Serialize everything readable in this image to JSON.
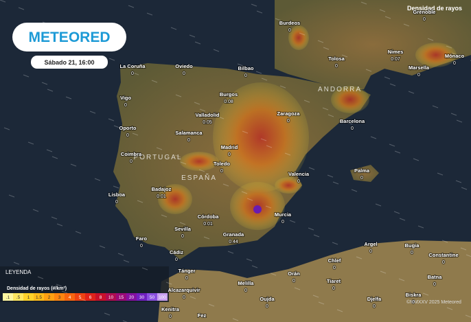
{
  "header": {
    "layer_title": "Densidad de rayos",
    "logo": "METEORED",
    "time": "Sábado 21, 16:00"
  },
  "legend": {
    "title": "LEYENDA",
    "subtitle": "Densidad de rayos (#/km²)",
    "labels": [
      ".1",
      ".5",
      "1",
      "1.5",
      "2",
      "3",
      "4",
      "5",
      "6",
      "8",
      "10",
      "15",
      "20",
      "30",
      "50",
      "100"
    ]
  },
  "countries": [
    "PORTUGAL",
    "ESPAÑA",
    "ANDORRA"
  ],
  "cities": [
    {
      "name": "Burdeos",
      "value": 0
    },
    {
      "name": "Grenoble",
      "value": 0
    },
    {
      "name": "Nimes",
      "value": 0.07
    },
    {
      "name": "Marsella",
      "value": 0
    },
    {
      "name": "Mónaco",
      "value": 0
    },
    {
      "name": "Tolosa",
      "value": 0
    },
    {
      "name": "La Coruña",
      "value": 0
    },
    {
      "name": "Oviedo",
      "value": 0
    },
    {
      "name": "Bilbao",
      "value": 0
    },
    {
      "name": "Vigo",
      "value": 0
    },
    {
      "name": "Burgos",
      "value": 0.08
    },
    {
      "name": "Valladolid",
      "value": 0.05
    },
    {
      "name": "Zaragoza",
      "value": 0
    },
    {
      "name": "Barcelona",
      "value": 0
    },
    {
      "name": "Oporto",
      "value": 0
    },
    {
      "name": "Salamanca",
      "value": 0
    },
    {
      "name": "Madrid",
      "value": 0
    },
    {
      "name": "Coimbra",
      "value": 0
    },
    {
      "name": "Toledo",
      "value": 0
    },
    {
      "name": "Valencia",
      "value": 0
    },
    {
      "name": "Palma",
      "value": 0
    },
    {
      "name": "Lisboa",
      "value": 0
    },
    {
      "name": "Badajoz",
      "value": 0.01
    },
    {
      "name": "Córdoba",
      "value": 0.01
    },
    {
      "name": "Murcia",
      "value": 0
    },
    {
      "name": "Sevilla",
      "value": 0
    },
    {
      "name": "Granada",
      "value": 0.44
    },
    {
      "name": "Faro",
      "value": 0
    },
    {
      "name": "Cádiz",
      "value": 0
    },
    {
      "name": "Argel",
      "value": 0
    },
    {
      "name": "Bugia",
      "value": 0
    },
    {
      "name": "Constantine",
      "value": 0
    },
    {
      "name": "Tánger",
      "value": 0
    },
    {
      "name": "Melilla",
      "value": 0
    },
    {
      "name": "Orán",
      "value": 0
    },
    {
      "name": "Chlef",
      "value": 0
    },
    {
      "name": "Tiaret",
      "value": 0
    },
    {
      "name": "Batna",
      "value": 0
    },
    {
      "name": "Alcazarquivir",
      "value": 0
    },
    {
      "name": "Oujda",
      "value": 0
    },
    {
      "name": "Djelfa",
      "value": 0
    },
    {
      "name": "Biskra",
      "value": 0
    },
    {
      "name": "Kenitra",
      "value": 0
    },
    {
      "name": "Fez",
      "value": 0
    }
  ],
  "footer": {
    "copyright": "©MMXXV 2025 Meteored"
  }
}
